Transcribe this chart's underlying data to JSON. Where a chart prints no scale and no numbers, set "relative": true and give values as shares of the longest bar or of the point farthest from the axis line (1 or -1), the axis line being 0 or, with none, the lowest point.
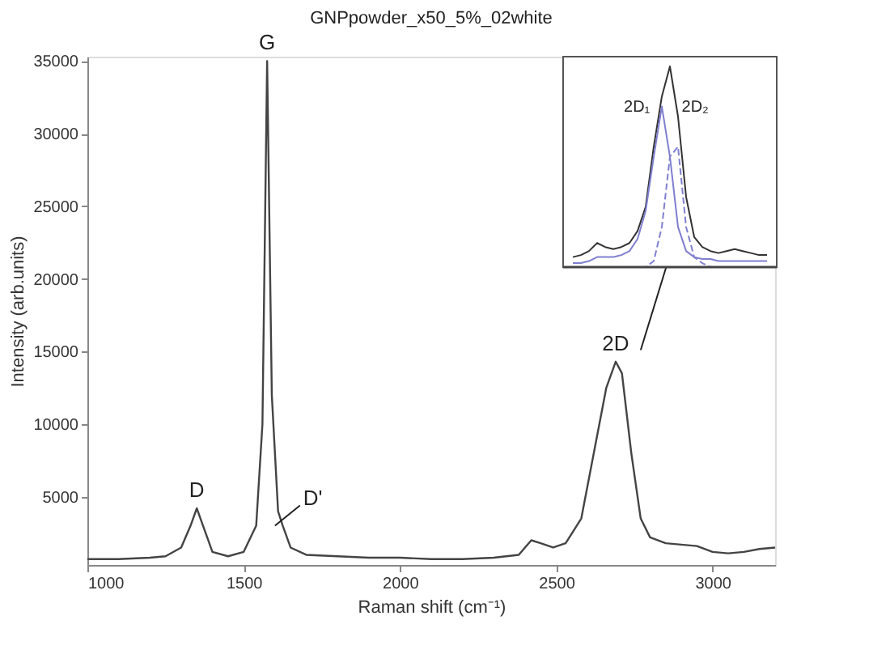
{
  "chart_data": [
    {
      "type": "line",
      "title": "GNPpowder_x50_5%_02white",
      "xlabel": "Raman shift (cm⁻¹)",
      "ylabel": "Intensity (arb.units)",
      "x": [
        1000,
        1100,
        1200,
        1250,
        1300,
        1330,
        1350,
        1370,
        1400,
        1450,
        1500,
        1540,
        1560,
        1575,
        1590,
        1610,
        1625,
        1650,
        1700,
        1800,
        1900,
        2000,
        2100,
        2200,
        2300,
        2380,
        2420,
        2450,
        2490,
        2530,
        2580,
        2620,
        2660,
        2690,
        2710,
        2740,
        2770,
        2800,
        2850,
        2900,
        2950,
        3000,
        3050,
        3100,
        3150,
        3200
      ],
      "series": [
        {
          "color": "#444444",
          "values": [
            700,
            700,
            800,
            900,
            1500,
            3000,
            4200,
            3000,
            1200,
            900,
            1200,
            3000,
            10000,
            35000,
            12000,
            4000,
            3000,
            1500,
            1000,
            900,
            800,
            800,
            700,
            700,
            800,
            1000,
            2000,
            1800,
            1500,
            1800,
            3500,
            8000,
            12500,
            14300,
            13500,
            8000,
            3500,
            2200,
            1800,
            1700,
            1600,
            1200,
            1100,
            1200,
            1400,
            1500
          ]
        }
      ],
      "xlim": [
        1000,
        3200
      ],
      "ylim": [
        300,
        35300
      ],
      "xticks": [
        1000,
        1500,
        2000,
        2500,
        3000
      ],
      "yticks": [
        5000,
        10000,
        15000,
        20000,
        25000,
        30000,
        35000
      ],
      "grid": false,
      "annotations": [
        {
          "text": "D",
          "x": 1350,
          "y": 4200
        },
        {
          "text": "G",
          "x": 1575,
          "y": 35000
        },
        {
          "text": "D'",
          "x": 1600,
          "y": 3000
        },
        {
          "text": "2D",
          "x": 2690,
          "y": 14300
        }
      ]
    },
    {
      "type": "line",
      "relative": true,
      "grid": false,
      "categories": [
        null,
        null,
        null,
        null,
        null,
        null,
        null,
        null,
        null,
        null,
        null,
        null,
        null,
        null,
        null,
        null,
        null,
        null,
        null,
        null,
        null,
        null,
        null,
        null,
        null
      ],
      "series": [
        {
          "color": "#333333",
          "line_style": "solid",
          "values": [
            0.05,
            0.06,
            0.08,
            0.12,
            0.1,
            0.09,
            0.1,
            0.12,
            0.18,
            0.3,
            0.6,
            0.85,
            1.0,
            0.75,
            0.35,
            0.15,
            0.1,
            0.08,
            0.07,
            0.08,
            0.09,
            0.08,
            0.07,
            0.06,
            0.06
          ]
        },
        {
          "color": "#7f7fd0",
          "line_style": "solid",
          "values": [
            0.02,
            0.02,
            0.03,
            0.05,
            0.05,
            0.05,
            0.06,
            0.08,
            0.14,
            0.28,
            0.55,
            0.8,
            0.55,
            0.2,
            0.08,
            0.05,
            0.04,
            0.04,
            0.03,
            0.03,
            0.03,
            0.03,
            0.03,
            0.03,
            0.03
          ]
        },
        {
          "color": "#7f7fd0",
          "line_style": "dashed",
          "values": [
            0,
            0,
            0,
            0,
            0,
            0,
            0,
            0,
            0,
            0,
            0.03,
            0.2,
            0.55,
            0.6,
            0.2,
            0.05,
            0.02,
            0,
            0,
            0,
            0,
            0,
            0,
            0,
            0
          ]
        }
      ],
      "annotations": [
        "2D₁",
        "2D₂"
      ]
    }
  ]
}
